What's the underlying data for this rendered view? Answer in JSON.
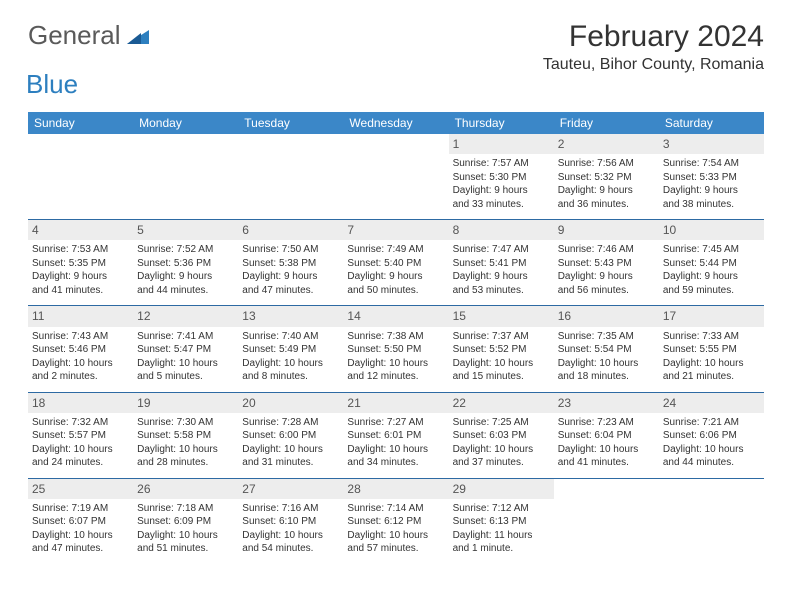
{
  "logo": {
    "text1": "General",
    "text2": "Blue"
  },
  "title": "February 2024",
  "location": "Tauteu, Bihor County, Romania",
  "colors": {
    "header_bg": "#3b87c8",
    "header_text": "#ffffff",
    "daynum_bg": "#ededed",
    "sep": "#2d6aa3",
    "logo_gray": "#5a5a5a",
    "logo_blue": "#2d7fbf"
  },
  "daynames": [
    "Sunday",
    "Monday",
    "Tuesday",
    "Wednesday",
    "Thursday",
    "Friday",
    "Saturday"
  ],
  "weeks": [
    [
      null,
      null,
      null,
      null,
      {
        "d": "1",
        "sr": "Sunrise: 7:57 AM",
        "ss": "Sunset: 5:30 PM",
        "dl1": "Daylight: 9 hours",
        "dl2": "and 33 minutes."
      },
      {
        "d": "2",
        "sr": "Sunrise: 7:56 AM",
        "ss": "Sunset: 5:32 PM",
        "dl1": "Daylight: 9 hours",
        "dl2": "and 36 minutes."
      },
      {
        "d": "3",
        "sr": "Sunrise: 7:54 AM",
        "ss": "Sunset: 5:33 PM",
        "dl1": "Daylight: 9 hours",
        "dl2": "and 38 minutes."
      }
    ],
    [
      {
        "d": "4",
        "sr": "Sunrise: 7:53 AM",
        "ss": "Sunset: 5:35 PM",
        "dl1": "Daylight: 9 hours",
        "dl2": "and 41 minutes."
      },
      {
        "d": "5",
        "sr": "Sunrise: 7:52 AM",
        "ss": "Sunset: 5:36 PM",
        "dl1": "Daylight: 9 hours",
        "dl2": "and 44 minutes."
      },
      {
        "d": "6",
        "sr": "Sunrise: 7:50 AM",
        "ss": "Sunset: 5:38 PM",
        "dl1": "Daylight: 9 hours",
        "dl2": "and 47 minutes."
      },
      {
        "d": "7",
        "sr": "Sunrise: 7:49 AM",
        "ss": "Sunset: 5:40 PM",
        "dl1": "Daylight: 9 hours",
        "dl2": "and 50 minutes."
      },
      {
        "d": "8",
        "sr": "Sunrise: 7:47 AM",
        "ss": "Sunset: 5:41 PM",
        "dl1": "Daylight: 9 hours",
        "dl2": "and 53 minutes."
      },
      {
        "d": "9",
        "sr": "Sunrise: 7:46 AM",
        "ss": "Sunset: 5:43 PM",
        "dl1": "Daylight: 9 hours",
        "dl2": "and 56 minutes."
      },
      {
        "d": "10",
        "sr": "Sunrise: 7:45 AM",
        "ss": "Sunset: 5:44 PM",
        "dl1": "Daylight: 9 hours",
        "dl2": "and 59 minutes."
      }
    ],
    [
      {
        "d": "11",
        "sr": "Sunrise: 7:43 AM",
        "ss": "Sunset: 5:46 PM",
        "dl1": "Daylight: 10 hours",
        "dl2": "and 2 minutes."
      },
      {
        "d": "12",
        "sr": "Sunrise: 7:41 AM",
        "ss": "Sunset: 5:47 PM",
        "dl1": "Daylight: 10 hours",
        "dl2": "and 5 minutes."
      },
      {
        "d": "13",
        "sr": "Sunrise: 7:40 AM",
        "ss": "Sunset: 5:49 PM",
        "dl1": "Daylight: 10 hours",
        "dl2": "and 8 minutes."
      },
      {
        "d": "14",
        "sr": "Sunrise: 7:38 AM",
        "ss": "Sunset: 5:50 PM",
        "dl1": "Daylight: 10 hours",
        "dl2": "and 12 minutes."
      },
      {
        "d": "15",
        "sr": "Sunrise: 7:37 AM",
        "ss": "Sunset: 5:52 PM",
        "dl1": "Daylight: 10 hours",
        "dl2": "and 15 minutes."
      },
      {
        "d": "16",
        "sr": "Sunrise: 7:35 AM",
        "ss": "Sunset: 5:54 PM",
        "dl1": "Daylight: 10 hours",
        "dl2": "and 18 minutes."
      },
      {
        "d": "17",
        "sr": "Sunrise: 7:33 AM",
        "ss": "Sunset: 5:55 PM",
        "dl1": "Daylight: 10 hours",
        "dl2": "and 21 minutes."
      }
    ],
    [
      {
        "d": "18",
        "sr": "Sunrise: 7:32 AM",
        "ss": "Sunset: 5:57 PM",
        "dl1": "Daylight: 10 hours",
        "dl2": "and 24 minutes."
      },
      {
        "d": "19",
        "sr": "Sunrise: 7:30 AM",
        "ss": "Sunset: 5:58 PM",
        "dl1": "Daylight: 10 hours",
        "dl2": "and 28 minutes."
      },
      {
        "d": "20",
        "sr": "Sunrise: 7:28 AM",
        "ss": "Sunset: 6:00 PM",
        "dl1": "Daylight: 10 hours",
        "dl2": "and 31 minutes."
      },
      {
        "d": "21",
        "sr": "Sunrise: 7:27 AM",
        "ss": "Sunset: 6:01 PM",
        "dl1": "Daylight: 10 hours",
        "dl2": "and 34 minutes."
      },
      {
        "d": "22",
        "sr": "Sunrise: 7:25 AM",
        "ss": "Sunset: 6:03 PM",
        "dl1": "Daylight: 10 hours",
        "dl2": "and 37 minutes."
      },
      {
        "d": "23",
        "sr": "Sunrise: 7:23 AM",
        "ss": "Sunset: 6:04 PM",
        "dl1": "Daylight: 10 hours",
        "dl2": "and 41 minutes."
      },
      {
        "d": "24",
        "sr": "Sunrise: 7:21 AM",
        "ss": "Sunset: 6:06 PM",
        "dl1": "Daylight: 10 hours",
        "dl2": "and 44 minutes."
      }
    ],
    [
      {
        "d": "25",
        "sr": "Sunrise: 7:19 AM",
        "ss": "Sunset: 6:07 PM",
        "dl1": "Daylight: 10 hours",
        "dl2": "and 47 minutes."
      },
      {
        "d": "26",
        "sr": "Sunrise: 7:18 AM",
        "ss": "Sunset: 6:09 PM",
        "dl1": "Daylight: 10 hours",
        "dl2": "and 51 minutes."
      },
      {
        "d": "27",
        "sr": "Sunrise: 7:16 AM",
        "ss": "Sunset: 6:10 PM",
        "dl1": "Daylight: 10 hours",
        "dl2": "and 54 minutes."
      },
      {
        "d": "28",
        "sr": "Sunrise: 7:14 AM",
        "ss": "Sunset: 6:12 PM",
        "dl1": "Daylight: 10 hours",
        "dl2": "and 57 minutes."
      },
      {
        "d": "29",
        "sr": "Sunrise: 7:12 AM",
        "ss": "Sunset: 6:13 PM",
        "dl1": "Daylight: 11 hours",
        "dl2": "and 1 minute."
      },
      null,
      null
    ]
  ]
}
